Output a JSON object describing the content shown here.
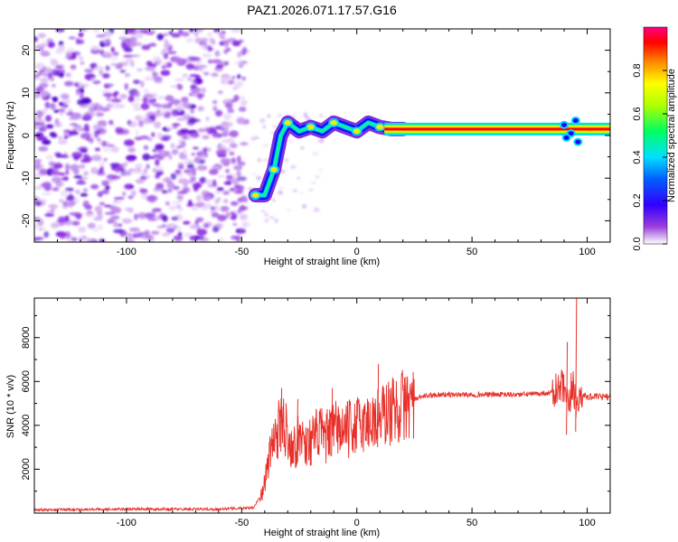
{
  "title": "PAZ1.2026.071.17.57.G16",
  "chart_data": [
    {
      "type": "heatmap",
      "xlabel": "Height of straight line (km)",
      "ylabel": "Frequency (Hz)",
      "xlim": [
        -140,
        110
      ],
      "ylim": [
        -25,
        25
      ],
      "xticks": [
        -100,
        -50,
        0,
        50,
        100
      ],
      "yticks": [
        -20,
        -10,
        0,
        10,
        20
      ],
      "noise_region_x": [
        -140,
        -48
      ],
      "tone_frequency_hz": 1.5,
      "ridge_points": [
        {
          "x": -44,
          "y": -14
        },
        {
          "x": -40,
          "y": -14
        },
        {
          "x": -36,
          "y": -8
        },
        {
          "x": -33,
          "y": 0
        },
        {
          "x": -30,
          "y": 3
        },
        {
          "x": -25,
          "y": 1
        },
        {
          "x": -20,
          "y": 2
        },
        {
          "x": -15,
          "y": 1
        },
        {
          "x": -10,
          "y": 3
        },
        {
          "x": -5,
          "y": 2
        },
        {
          "x": 0,
          "y": 1
        },
        {
          "x": 5,
          "y": 3
        },
        {
          "x": 10,
          "y": 2
        },
        {
          "x": 15,
          "y": 1.5
        },
        {
          "x": 20,
          "y": 1.5
        }
      ],
      "colorbar": {
        "label": "Normalized spectral amplitude",
        "ticks": [
          "0.0",
          "0.2",
          "0.4",
          "0.6",
          "0.8"
        ],
        "range": [
          0,
          1
        ],
        "colors": [
          "#ffffff",
          "#7a00cc",
          "#0000ff",
          "#00ffff",
          "#00ff00",
          "#ffff00",
          "#ff8800",
          "#ff0000",
          "#ff0066"
        ]
      }
    },
    {
      "type": "line",
      "xlabel": "Height of straight line (km)",
      "ylabel": "SNR (10 * v/v)",
      "xlim": [
        -140,
        110
      ],
      "ylim": [
        0,
        9800
      ],
      "xticks": [
        -100,
        -50,
        0,
        50,
        100
      ],
      "yticks": [
        2000,
        4000,
        6000,
        8000
      ],
      "color": "#e8302a",
      "series": [
        {
          "x": [
            -140,
            -100,
            -60,
            -45,
            -41,
            -38,
            -36,
            -34,
            -32,
            -30,
            -28,
            -26,
            -24,
            -22,
            -20,
            -18,
            -16,
            -14,
            -12,
            -10,
            -8,
            -6,
            -4,
            -2,
            0,
            2,
            4,
            6,
            8,
            10,
            12,
            14,
            16,
            18,
            20,
            22,
            24,
            26,
            28,
            30,
            35,
            40,
            50,
            60,
            70,
            80,
            85,
            88,
            90,
            92,
            93,
            94,
            95,
            96,
            97,
            98,
            100,
            105,
            110
          ],
          "y": [
            150,
            180,
            180,
            250,
            900,
            2500,
            3400,
            3800,
            4200,
            3600,
            3000,
            3200,
            3600,
            3100,
            3300,
            3500,
            3700,
            3400,
            3600,
            3800,
            3900,
            3700,
            3800,
            3900,
            4000,
            4100,
            4000,
            4300,
            4200,
            4400,
            4500,
            4600,
            4700,
            4800,
            4900,
            5000,
            5100,
            5200,
            5300,
            5350,
            5400,
            5400,
            5400,
            5400,
            5400,
            5450,
            5500,
            5600,
            5700,
            4500,
            5500,
            5800,
            5300,
            4500,
            5600,
            5400,
            5300,
            5300,
            5300
          ]
        }
      ],
      "spikes": [
        {
          "x": -33,
          "y": 5700
        },
        {
          "x": -26,
          "y": 5200
        },
        {
          "x": -11,
          "y": 5700
        },
        {
          "x": 9,
          "y": 6800
        },
        {
          "x": 91,
          "y": 7800
        },
        {
          "x": 95,
          "y": 9800
        }
      ]
    }
  ]
}
